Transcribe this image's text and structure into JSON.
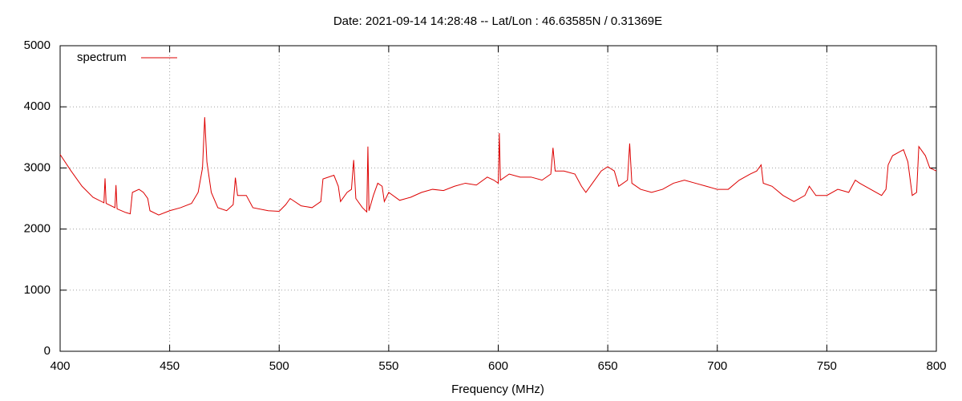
{
  "chart_data": {
    "type": "line",
    "title": "Date: 2021-09-14 14:28:48  --  Lat/Lon : 46.63585N / 0.31369E",
    "x_label": "Frequency (MHz)",
    "x": [
      400,
      405,
      410,
      415,
      420,
      420.5,
      421,
      425,
      425.5,
      426,
      430,
      432,
      433,
      436,
      438,
      440,
      441,
      445,
      450,
      455,
      460,
      463,
      465,
      466,
      467,
      469,
      472,
      476,
      479,
      480,
      481,
      485,
      488,
      495,
      500,
      503,
      505,
      510,
      515,
      519,
      520,
      525,
      527,
      528,
      531,
      533,
      534,
      535,
      538,
      540,
      540.5,
      541,
      543,
      545,
      547,
      548,
      550,
      555,
      560,
      565,
      570,
      575,
      580,
      585,
      590,
      595,
      598,
      600,
      600.5,
      601,
      605,
      610,
      615,
      620,
      624,
      625,
      626,
      630,
      635,
      638,
      640,
      643,
      647,
      650,
      653,
      655,
      659,
      660,
      661,
      665,
      670,
      675,
      680,
      685,
      690,
      695,
      700,
      705,
      710,
      715,
      718,
      720,
      721,
      725,
      730,
      735,
      740,
      742,
      745,
      750,
      755,
      760,
      763,
      765,
      770,
      775,
      777,
      778,
      780,
      785,
      787,
      789,
      791,
      792,
      795,
      797,
      800
    ],
    "series": [
      {
        "name": "spectrum",
        "color": "#dd0000",
        "values": [
          3220,
          2950,
          2700,
          2520,
          2430,
          2830,
          2420,
          2350,
          2720,
          2330,
          2270,
          2250,
          2600,
          2650,
          2600,
          2500,
          2300,
          2230,
          2300,
          2350,
          2420,
          2600,
          3000,
          3830,
          3100,
          2600,
          2350,
          2300,
          2400,
          2840,
          2550,
          2550,
          2350,
          2300,
          2290,
          2400,
          2500,
          2380,
          2350,
          2450,
          2820,
          2880,
          2700,
          2450,
          2600,
          2650,
          3130,
          2500,
          2350,
          2280,
          3350,
          2300,
          2550,
          2750,
          2700,
          2450,
          2600,
          2470,
          2520,
          2600,
          2650,
          2630,
          2700,
          2750,
          2720,
          2850,
          2800,
          2750,
          3570,
          2800,
          2900,
          2850,
          2850,
          2800,
          2900,
          3330,
          2950,
          2950,
          2900,
          2700,
          2600,
          2750,
          2950,
          3020,
          2950,
          2700,
          2800,
          3400,
          2750,
          2650,
          2600,
          2650,
          2750,
          2800,
          2750,
          2700,
          2650,
          2650,
          2800,
          2900,
          2950,
          3050,
          2750,
          2700,
          2550,
          2450,
          2550,
          2700,
          2550,
          2550,
          2650,
          2600,
          2800,
          2750,
          2650,
          2550,
          2650,
          3050,
          3200,
          3300,
          3100,
          2550,
          2600,
          3350,
          3200,
          3000,
          2950
        ]
      }
    ],
    "xlim": [
      400,
      800
    ],
    "xticks": [
      400,
      450,
      500,
      550,
      600,
      650,
      700,
      750,
      800
    ],
    "ylim": [
      0,
      5000
    ],
    "yticks": [
      0,
      1000,
      2000,
      3000,
      4000,
      5000
    ],
    "grid": true,
    "legend": "top-left"
  }
}
